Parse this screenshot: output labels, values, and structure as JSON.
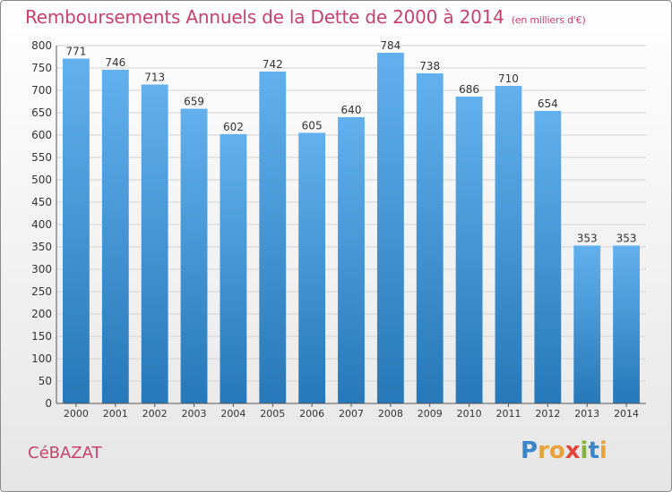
{
  "chart_data": {
    "type": "bar",
    "title": "Remboursements Annuels de la Dette de 2000 à 2014",
    "subtitle": "(en milliers d'€)",
    "categories": [
      "2000",
      "2001",
      "2002",
      "2003",
      "2004",
      "2005",
      "2006",
      "2007",
      "2008",
      "2009",
      "2010",
      "2011",
      "2012",
      "2013",
      "2014"
    ],
    "values": [
      771,
      746,
      713,
      659,
      602,
      742,
      605,
      640,
      784,
      738,
      686,
      710,
      654,
      353,
      353
    ],
    "ylim": [
      0,
      800
    ],
    "ytick_step": 50,
    "xlabel": "",
    "ylabel": "",
    "grid": true
  },
  "footer": {
    "commune": "CéBAZAT",
    "logo_text": "Proxiti"
  },
  "colors": {
    "title": "#c8416d",
    "bar_light": "#62b0ee",
    "bar_dark": "#2778b8",
    "axis_text": "#333333",
    "value_text": "#333333"
  }
}
